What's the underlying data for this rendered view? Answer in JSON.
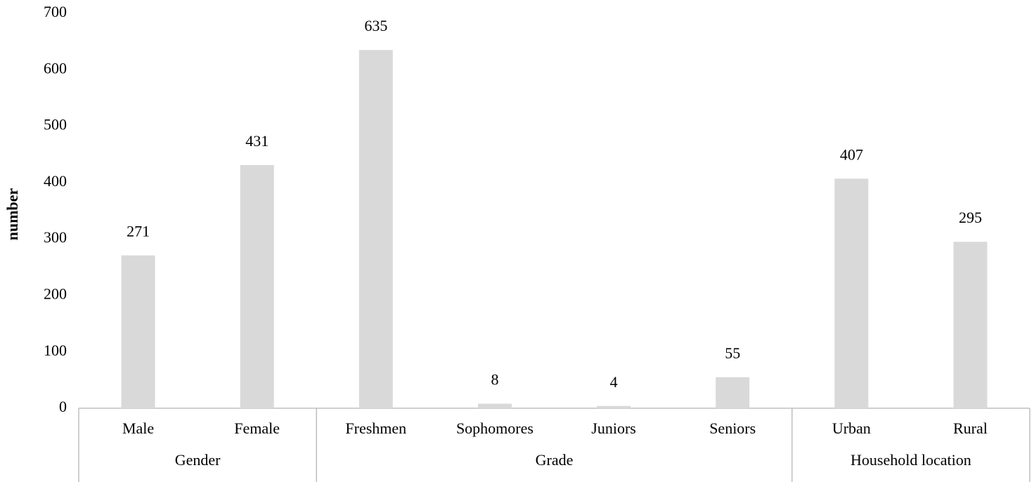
{
  "chart_data": {
    "type": "bar",
    "y_label": "number",
    "color": "#d9d9d9",
    "groups": [
      {
        "name": "Gender",
        "categories": [
          "Male",
          "Female"
        ],
        "values": [
          271,
          431
        ]
      },
      {
        "name": "Grade",
        "categories": [
          "Freshmen",
          "Sophomores",
          "Juniors",
          "Seniors"
        ],
        "values": [
          635,
          8,
          4,
          55
        ]
      },
      {
        "name": "Household location",
        "categories": [
          "Urban",
          "Rural"
        ],
        "values": [
          407,
          295
        ]
      }
    ],
    "ylim": [
      0,
      700
    ],
    "yticks": [
      0,
      100,
      200,
      300,
      400,
      500,
      600,
      700
    ],
    "grid": false
  }
}
